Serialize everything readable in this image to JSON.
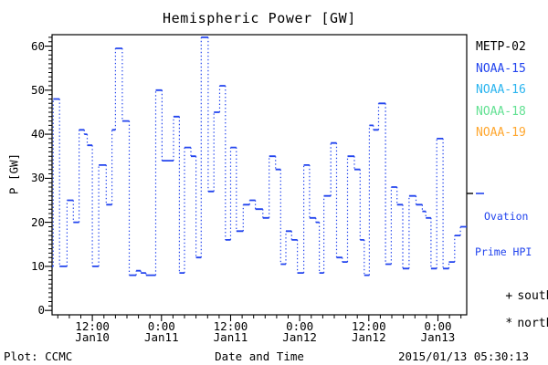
{
  "chart_data": {
    "type": "line",
    "subtype": "step-stairs-dotted-verticals",
    "title": "Hemispheric Power [GW]",
    "xlabel": "Date and Time",
    "ylabel": "P [GW]",
    "ylim": [
      -1,
      62.6
    ],
    "y_ticks": [
      0,
      10,
      20,
      30,
      40,
      50,
      60
    ],
    "y_minor_step": 1,
    "x_hours_range": [
      0,
      72
    ],
    "x_minor_step_hours": 2,
    "x_ticks": [
      {
        "hour": 7,
        "time": "12:00",
        "date": "Jan10"
      },
      {
        "hour": 19,
        "time": "0:00",
        "date": "Jan11"
      },
      {
        "hour": 31,
        "time": "12:00",
        "date": "Jan11"
      },
      {
        "hour": 43,
        "time": "0:00",
        "date": "Jan12"
      },
      {
        "hour": 55,
        "time": "12:00",
        "date": "Jan12"
      },
      {
        "hour": 67,
        "time": "0:00",
        "date": "Jan13"
      }
    ],
    "grid": false,
    "legend_entries": [
      {
        "label": "METP-02",
        "color": "#000000"
      },
      {
        "label": "NOAA-15",
        "color": "#2244ee"
      },
      {
        "label": "NOAA-16",
        "color": "#2ab4ef"
      },
      {
        "label": "NOAA-18",
        "color": "#63e193"
      },
      {
        "label": "NOAA-19",
        "color": "#ffa72f"
      }
    ],
    "series": [
      {
        "name": "Ovation Prime HPI",
        "color": "#2244ee",
        "units": "GW",
        "steps": [
          [
            0,
            10
          ],
          [
            0.2,
            48
          ],
          [
            1.3,
            10
          ],
          [
            2.6,
            25
          ],
          [
            3.7,
            20
          ],
          [
            4.7,
            41
          ],
          [
            5.6,
            40
          ],
          [
            6.1,
            37.5
          ],
          [
            7.0,
            10
          ],
          [
            8.1,
            33
          ],
          [
            9.4,
            24
          ],
          [
            10.4,
            41
          ],
          [
            11.0,
            59.5
          ],
          [
            12.2,
            43
          ],
          [
            13.4,
            8
          ],
          [
            14.6,
            9
          ],
          [
            15.4,
            8.5
          ],
          [
            16.3,
            8
          ],
          [
            18.0,
            50
          ],
          [
            19.1,
            34
          ],
          [
            20.3,
            34
          ],
          [
            21.1,
            44
          ],
          [
            22.1,
            8.5
          ],
          [
            23.0,
            37
          ],
          [
            24.1,
            35
          ],
          [
            25.0,
            12
          ],
          [
            25.9,
            62
          ],
          [
            27.1,
            27
          ],
          [
            28.1,
            45
          ],
          [
            29.1,
            51
          ],
          [
            30.1,
            16
          ],
          [
            31.0,
            37
          ],
          [
            32.0,
            18
          ],
          [
            33.2,
            24
          ],
          [
            34.3,
            25
          ],
          [
            35.3,
            23
          ],
          [
            36.6,
            21
          ],
          [
            37.7,
            35
          ],
          [
            38.8,
            32
          ],
          [
            39.7,
            10.5
          ],
          [
            40.6,
            18
          ],
          [
            41.6,
            16
          ],
          [
            42.6,
            8.5
          ],
          [
            43.7,
            33
          ],
          [
            44.7,
            21
          ],
          [
            45.8,
            20
          ],
          [
            46.4,
            8.5
          ],
          [
            47.2,
            26
          ],
          [
            48.4,
            38
          ],
          [
            49.4,
            12
          ],
          [
            50.4,
            11
          ],
          [
            51.3,
            35
          ],
          [
            52.5,
            32
          ],
          [
            53.5,
            16
          ],
          [
            54.2,
            8
          ],
          [
            55.1,
            42
          ],
          [
            55.8,
            41
          ],
          [
            56.7,
            47
          ],
          [
            57.9,
            10.5
          ],
          [
            58.9,
            28
          ],
          [
            59.9,
            24
          ],
          [
            60.9,
            9.5
          ],
          [
            62.0,
            26
          ],
          [
            63.2,
            24
          ],
          [
            64.3,
            22.5
          ],
          [
            64.9,
            21
          ],
          [
            65.8,
            9.5
          ],
          [
            66.8,
            39
          ],
          [
            67.9,
            9.5
          ],
          [
            68.9,
            11
          ],
          [
            69.9,
            17
          ],
          [
            70.9,
            19
          ]
        ]
      }
    ]
  },
  "legend": {
    "ovation": {
      "line1": "Ovation",
      "line2": "Prime HPI"
    },
    "markers": [
      {
        "symbol": "+",
        "label": "south"
      },
      {
        "symbol": "*",
        "label": "north"
      }
    ]
  },
  "footer": {
    "left": "Plot: CCMC",
    "right": "2015/01/13 05:30:13"
  }
}
